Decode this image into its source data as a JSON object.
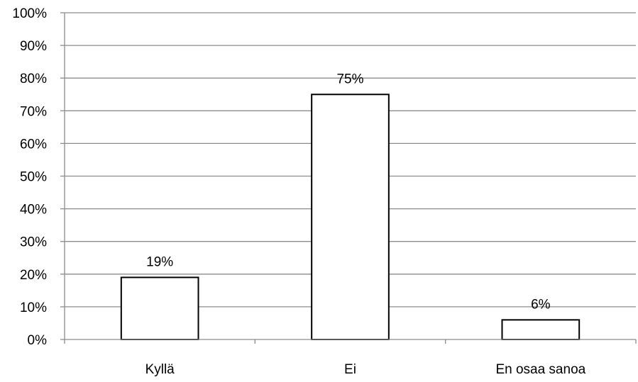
{
  "chart_data": {
    "type": "bar",
    "title": "",
    "xlabel": "",
    "ylabel": "",
    "categories": [
      "Kyllä",
      "Ei",
      "En osaa sanoa"
    ],
    "values": [
      19,
      75,
      6
    ],
    "data_labels": [
      "19%",
      "75%",
      "6%"
    ],
    "ylim": [
      0,
      100
    ],
    "y_ticks": [
      "0%",
      "10%",
      "20%",
      "30%",
      "40%",
      "50%",
      "60%",
      "70%",
      "80%",
      "90%",
      "100%"
    ],
    "grid": true,
    "legend": "none",
    "colors": {
      "bar_fill": "#ffffff",
      "bar_stroke": "#000000",
      "grid": "#8c8c8c",
      "axis": "#8c8c8c"
    }
  }
}
